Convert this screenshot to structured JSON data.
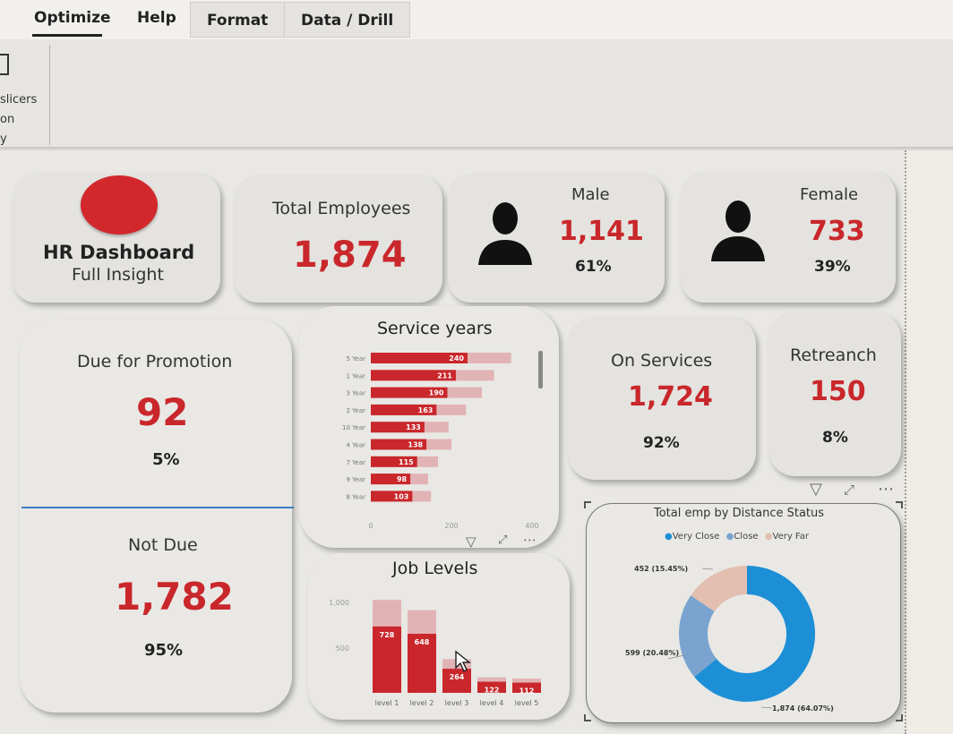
{
  "ribbon": {
    "tabs": [
      "Optimize",
      "Help",
      "Format",
      "Data / Drill"
    ],
    "side_labels": [
      "slicers",
      "on",
      "y"
    ]
  },
  "colors": {
    "accent_red": "#c9272b",
    "donut_blue": "#1d8fd6",
    "donut_mid": "#7aa4cf",
    "donut_light": "#e2bfb0"
  },
  "title_card": {
    "title": "HR Dashboard",
    "subtitle": "Full Insight"
  },
  "total": {
    "label": "Total Employees",
    "value": "1,874"
  },
  "male": {
    "label": "Male",
    "value": "1,141",
    "pct": "61%"
  },
  "female": {
    "label": "Female",
    "value": "733",
    "pct": "39%"
  },
  "promotion": {
    "due_label": "Due for Promotion",
    "due_value": "92",
    "due_pct": "5%",
    "not_label": "Not Due",
    "not_value": "1,782",
    "not_pct": "95%"
  },
  "on_services": {
    "label": "On Services",
    "value": "1,724",
    "pct": "92%"
  },
  "retrench": {
    "label": "Retreanch",
    "value": "150",
    "pct": "8%"
  },
  "chart_data": [
    {
      "type": "bar",
      "orientation": "horizontal",
      "title": "Service years",
      "categories": [
        "5 Year",
        "1 Year",
        "3 Year",
        "2 Year",
        "10 Year",
        "4 Year",
        "7 Year",
        "9 Year",
        "8 Year"
      ],
      "values": [
        240,
        211,
        190,
        163,
        133,
        138,
        115,
        98,
        103
      ],
      "xticks": [
        "0",
        "200",
        "400"
      ],
      "xlim": [
        0,
        400
      ]
    },
    {
      "type": "bar",
      "title": "Job Levels",
      "categories": [
        "level 1",
        "level 2",
        "level 3",
        "level 4",
        "level 5"
      ],
      "values": [
        728,
        648,
        264,
        122,
        112
      ],
      "yticks": [
        "1,000",
        "500"
      ],
      "ylim": [
        0,
        1100
      ]
    },
    {
      "type": "pie",
      "donut": true,
      "title": "Total emp by Distance Status",
      "legend": [
        "Very Close",
        "Close",
        "Very Far"
      ],
      "slices": [
        {
          "name": "Very Close",
          "value": 1874,
          "label": "1,874 (64.07%)"
        },
        {
          "name": "Close",
          "value": 599,
          "label": "599 (20.48%)"
        },
        {
          "name": "Very Far",
          "value": 452,
          "label": "452 (15.45%)"
        }
      ]
    }
  ]
}
